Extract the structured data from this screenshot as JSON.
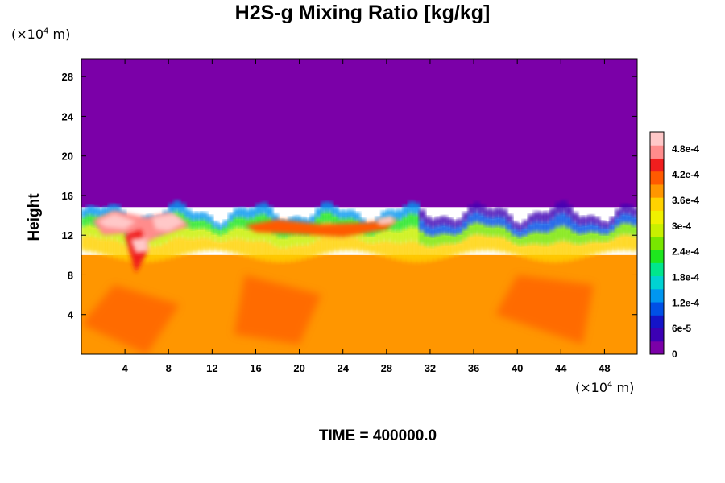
{
  "chart_data": {
    "type": "heatmap",
    "title": "H2S-g Mixing Ratio [kg/kg]",
    "ylabel": "Height",
    "x_unit": "(×10⁴ m)",
    "y_unit": "(×10⁴ m)",
    "x_unit_prefix": "(×10",
    "x_unit_exp": "4",
    "x_unit_suffix": " m)",
    "y_unit_prefix": "(×10",
    "y_unit_exp": "4",
    "y_unit_suffix": " m)",
    "xlim": [
      0,
      51
    ],
    "ylim": [
      0,
      29.8
    ],
    "x_ticks": [
      4,
      8,
      12,
      16,
      20,
      24,
      28,
      32,
      36,
      40,
      44,
      48
    ],
    "y_ticks": [
      4,
      8,
      12,
      16,
      20,
      24,
      28
    ],
    "x_tick_labels": [
      "4",
      "8",
      "12",
      "16",
      "20",
      "24",
      "28",
      "32",
      "36",
      "40",
      "44",
      "48"
    ],
    "y_tick_labels": [
      "4",
      "8",
      "12",
      "16",
      "20",
      "24",
      "28"
    ],
    "colorbar": {
      "min": 0,
      "max": 0.00052,
      "tick_values": [
        0,
        6e-05,
        0.00012,
        0.00018,
        0.00024,
        0.0003,
        0.00036,
        0.00042,
        0.00048
      ],
      "tick_labels": [
        "0",
        "6e-5",
        "1.2e-4",
        "1.8e-4",
        "2.4e-4",
        "3e-4",
        "3.6e-4",
        "4.2e-4",
        "4.8e-4"
      ],
      "colors": [
        "#7b00a8",
        "#3c00b4",
        "#1414c8",
        "#0050e6",
        "#0096f0",
        "#00d2d2",
        "#00e68c",
        "#1ee61e",
        "#78e600",
        "#c8f000",
        "#f0f000",
        "#ffd200",
        "#ff9600",
        "#ff5a00",
        "#f01e1e",
        "#ff8c8c",
        "#ffc8c8"
      ]
    },
    "regions": {
      "upper": {
        "description_value_kgkg": 0,
        "y_from": 15,
        "y_to": 29.8
      },
      "mid_layer_y": [
        10,
        15
      ],
      "lower": {
        "value_kgkg": 0.00038,
        "y_from": 0,
        "y_to": 10
      },
      "peak_x_range": [
        1,
        10
      ],
      "peak_value_kgkg": 0.0005
    },
    "time_label": "TIME = 400000.0"
  }
}
